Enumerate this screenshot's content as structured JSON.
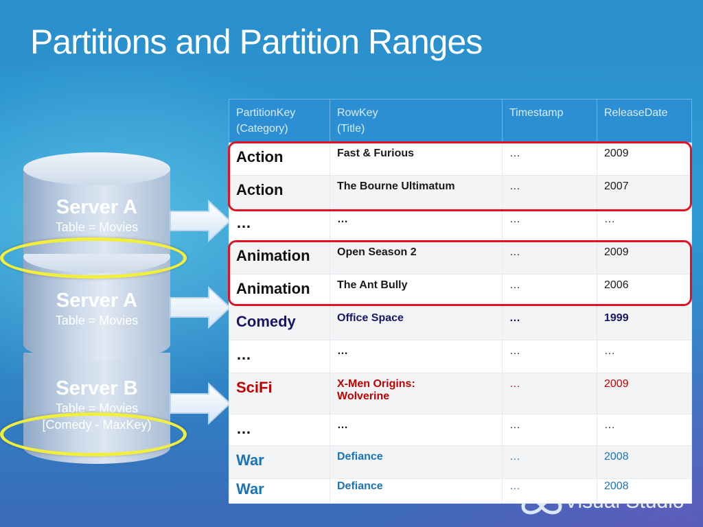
{
  "slide": {
    "title": "Partitions and Partition Ranges"
  },
  "servers": [
    {
      "name": "Server A",
      "table": "Table = Movies",
      "range": ""
    },
    {
      "name": "Server A",
      "table": "Table = Movies",
      "range": ""
    },
    {
      "name": "Server B",
      "table": "Table = Movies",
      "range": "[Comedy - MaxKey)"
    }
  ],
  "table": {
    "headers": [
      {
        "line1": "PartitionKey",
        "line2": "(Category)"
      },
      {
        "line1": "RowKey",
        "line2": "(Title)"
      },
      {
        "line1": "Timestamp",
        "line2": ""
      },
      {
        "line1": "ReleaseDate",
        "line2": ""
      }
    ],
    "rows": [
      {
        "partition_key": "Action",
        "row_key": "Fast & Furious",
        "timestamp": "…",
        "release_date": "2009"
      },
      {
        "partition_key": "Action",
        "row_key": "The Bourne Ultimatum",
        "timestamp": "…",
        "release_date": "2007"
      },
      {
        "partition_key": "…",
        "row_key": "…",
        "timestamp": "…",
        "release_date": "…"
      },
      {
        "partition_key": "Animation",
        "row_key": "Open Season 2",
        "timestamp": "…",
        "release_date": "2009"
      },
      {
        "partition_key": "Animation",
        "row_key": "The Ant Bully",
        "timestamp": "…",
        "release_date": "2006"
      },
      {
        "partition_key": "Comedy",
        "row_key": "Office Space",
        "timestamp": "…",
        "release_date": "1999"
      },
      {
        "partition_key": "…",
        "row_key": "…",
        "timestamp": "…",
        "release_date": "…"
      },
      {
        "partition_key": "SciFi",
        "row_key": "X-Men Origins: Wolverine",
        "timestamp": "…",
        "release_date": "2009"
      },
      {
        "partition_key": "…",
        "row_key": "…",
        "timestamp": "…",
        "release_date": "…"
      },
      {
        "partition_key": "War",
        "row_key": "Defiance",
        "timestamp": "…",
        "release_date": "2008"
      },
      {
        "partition_key": "War",
        "row_key": "Defiance",
        "timestamp": "…",
        "release_date": "2008"
      }
    ]
  },
  "logo": {
    "text": "Visual Studio"
  },
  "colors": {
    "highlight_box": "#e3101f",
    "partition_ring": "#f1ee3c",
    "comedy_text": "#1c1464",
    "scifi_text": "#c00000",
    "war_text": "#1a73b8",
    "header_bg": "#2d8fd3"
  }
}
